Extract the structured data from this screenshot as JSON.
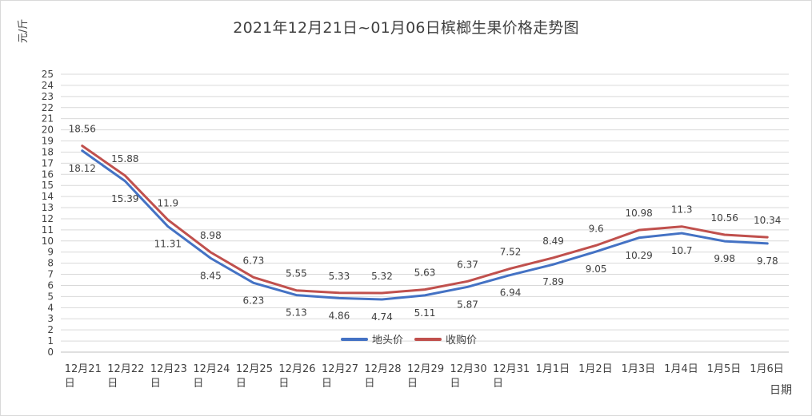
{
  "chart_data": {
    "type": "line",
    "title": "2021年12月21日~01月06日槟榔生果价格走势图",
    "ylabel": "元/斤",
    "xlabel": "日期",
    "ylim": [
      0,
      25
    ],
    "y_ticks": [
      "0",
      "1",
      "2",
      "3",
      "4",
      "5",
      "6",
      "7",
      "8",
      "9",
      "10",
      "11",
      "12",
      "13",
      "14",
      "15",
      "16",
      "17",
      "18",
      "19",
      "20",
      "21",
      "22",
      "23",
      "24",
      "25"
    ],
    "categories": [
      [
        "12月21",
        "日"
      ],
      [
        "12月22",
        "日"
      ],
      [
        "12月23",
        "日"
      ],
      [
        "12月24",
        "日"
      ],
      [
        "12月25",
        "日"
      ],
      [
        "12月26",
        "日"
      ],
      [
        "12月27",
        "日"
      ],
      [
        "12月28",
        "日"
      ],
      [
        "12月29",
        "日"
      ],
      [
        "12月30",
        "日"
      ],
      [
        "12月31",
        "日"
      ],
      [
        "1月1日",
        ""
      ],
      [
        "1月2日",
        ""
      ],
      [
        "1月3日",
        ""
      ],
      [
        "1月4日",
        ""
      ],
      [
        "1月5日",
        ""
      ],
      [
        "1月6日",
        ""
      ]
    ],
    "grid": true,
    "legend_position": "bottom-center",
    "series": [
      {
        "name": "地头价",
        "color": "#4472c4",
        "values": [
          18.12,
          15.39,
          11.31,
          8.45,
          6.23,
          5.13,
          4.86,
          4.74,
          5.11,
          5.87,
          6.94,
          7.89,
          9.05,
          10.29,
          10.7,
          9.98,
          9.78
        ],
        "labels": [
          "18.12",
          "15.39",
          "11.31",
          "8.45",
          "6.23",
          "5.13",
          "4.86",
          "4.74",
          "5.11",
          "5.87",
          "6.94",
          "7.89",
          "9.05",
          "10.29",
          "10.7",
          "9.98",
          "9.78"
        ]
      },
      {
        "name": "收购价",
        "color": "#c0504d",
        "values": [
          18.56,
          15.88,
          11.9,
          8.98,
          6.73,
          5.55,
          5.33,
          5.32,
          5.63,
          6.37,
          7.52,
          8.49,
          9.6,
          10.98,
          11.3,
          10.56,
          10.34
        ],
        "labels": [
          "18.56",
          "15.88",
          "11.9",
          "8.98",
          "6.73",
          "5.55",
          "5.33",
          "5.32",
          "5.63",
          "6.37",
          "7.52",
          "8.49",
          "9.6",
          "10.98",
          "11.3",
          "10.56",
          "10.34"
        ]
      }
    ]
  }
}
